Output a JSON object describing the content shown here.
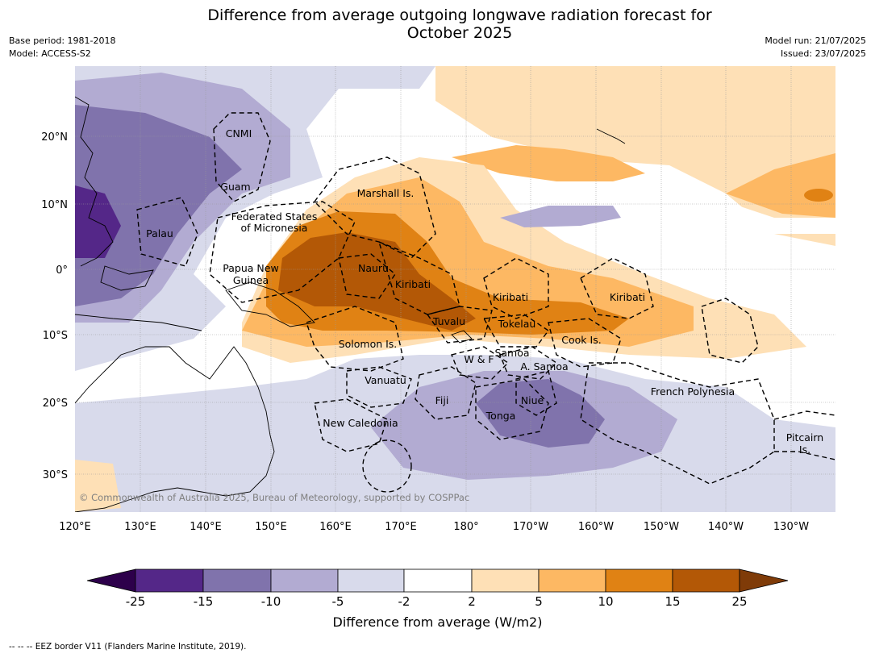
{
  "title_line1": "Difference from average outgoing longwave radiation forecast for",
  "title_line2": "October 2025",
  "meta_left": [
    "Base period: 1981-2018",
    "Model: ACCESS-S2"
  ],
  "meta_right": [
    "Model run: 21/07/2025",
    "Issued: 23/07/2025"
  ],
  "copyright": "© Commonwealth of Australia 2025, Bureau of Meteorology, supported by COSPPac",
  "lon_ticks": [
    "120°E",
    "130°E",
    "140°E",
    "150°E",
    "160°E",
    "170°E",
    "180°",
    "170°W",
    "160°W",
    "150°W",
    "140°W",
    "130°W"
  ],
  "lat_ticks": [
    "20°N",
    "10°N",
    "0°",
    "10°S",
    "20°S",
    "30°S"
  ],
  "region_labels": [
    "CNMI",
    "Guam",
    "Marshall Is.",
    "Federated States",
    "of Micronesia",
    "Palau",
    "Papua New",
    "Guinea",
    "Nauru",
    "Kiribati",
    "Kiribati",
    "Kiribati",
    "Tuvalu",
    "Tokelau",
    "Cook Is.",
    "Solomon Is.",
    "W & F",
    "Samoa",
    "A. Samoa",
    "Vanuatu",
    "Fiji",
    "Niue",
    "Tonga",
    "New Caledonia",
    "French Polynesia",
    "Pitcairn",
    "Is."
  ],
  "colorbar": {
    "ticks": [
      "-25",
      "-15",
      "-10",
      "-5",
      "-2",
      "2",
      "5",
      "10",
      "15",
      "25"
    ],
    "colors": [
      "#2d004b",
      "#542788",
      "#8073ac",
      "#b2abd2",
      "#d8daeb",
      "#ffffff",
      "#fee0b6",
      "#fdb863",
      "#e08214",
      "#b35806",
      "#7f3b08"
    ],
    "label": "Difference from average (W/m2)"
  },
  "footer": "--  --  -- EEZ border V11 (Flanders Marine Institute, 2019)."
}
